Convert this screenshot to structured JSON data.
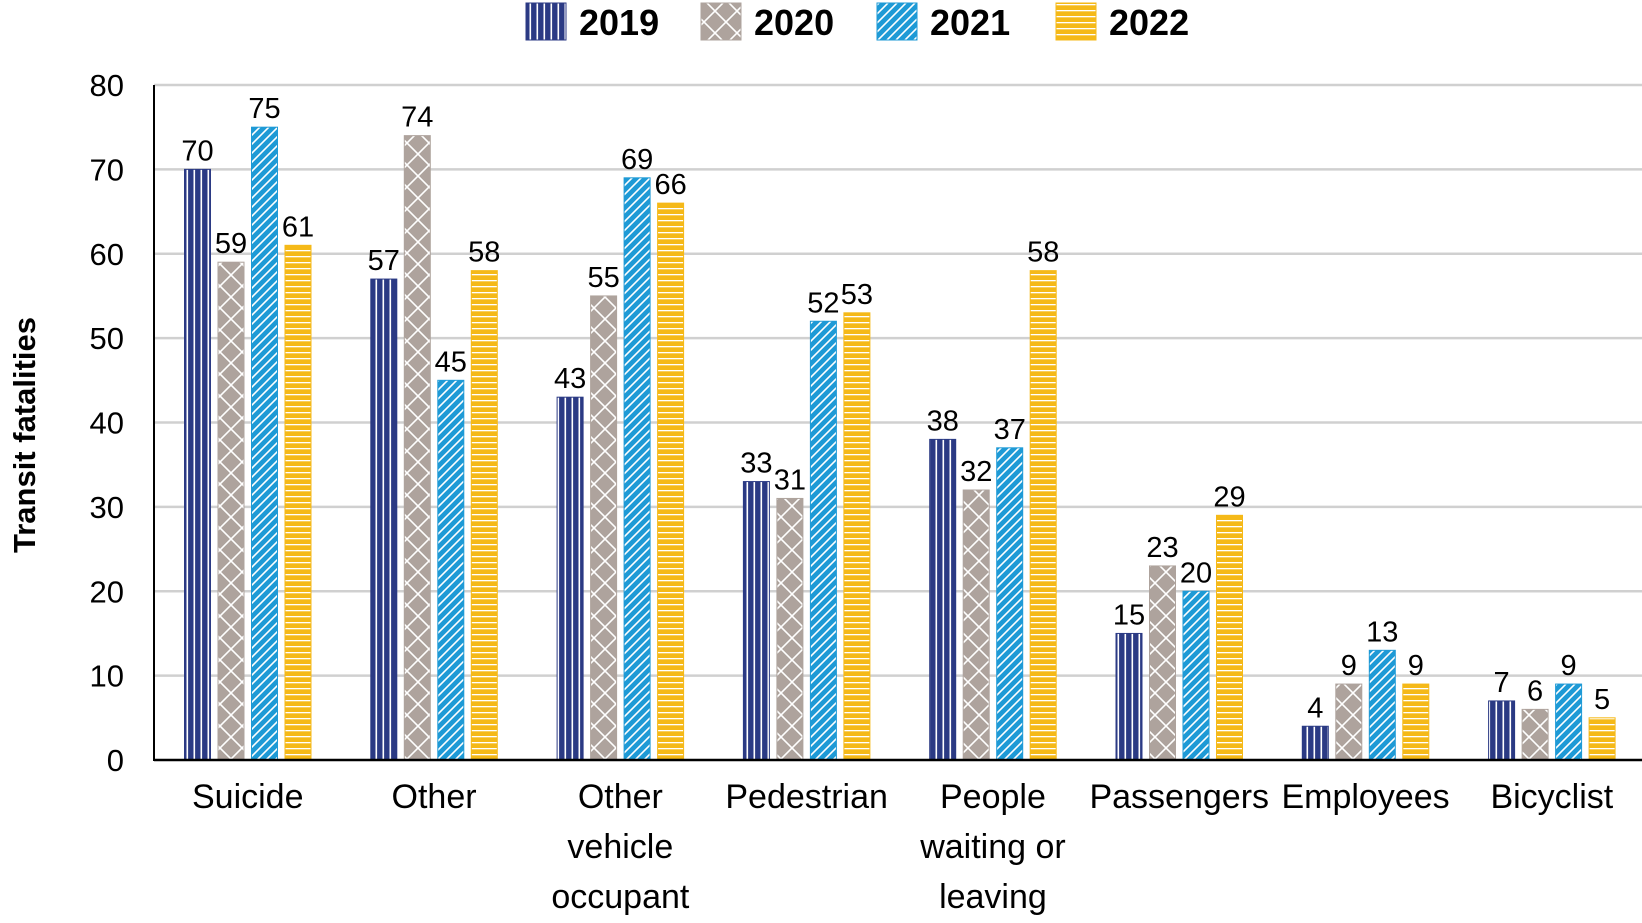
{
  "chart_data": {
    "type": "bar",
    "title": "",
    "xlabel": "",
    "ylabel": "Transit fatalities",
    "ylim": [
      0,
      80
    ],
    "yticks": [
      0,
      10,
      20,
      30,
      40,
      50,
      60,
      70,
      80
    ],
    "grid": true,
    "legend_position": "top-center",
    "categories": [
      [
        "Suicide"
      ],
      [
        "Other"
      ],
      [
        "Other",
        "vehicle",
        "occupant"
      ],
      [
        "Pedestrian"
      ],
      [
        "People",
        "waiting or",
        "leaving"
      ],
      [
        "Passengers"
      ],
      [
        "Employees"
      ],
      [
        "Bicyclist"
      ]
    ],
    "series": [
      {
        "name": "2019",
        "color": "#2b3a84",
        "pattern": "vertical-stripes",
        "values": [
          70,
          57,
          43,
          33,
          38,
          15,
          4,
          7
        ]
      },
      {
        "name": "2020",
        "color": "#aea39d",
        "pattern": "crosshatch",
        "values": [
          59,
          74,
          55,
          31,
          32,
          23,
          9,
          6
        ]
      },
      {
        "name": "2021",
        "color": "#1e9ad6",
        "pattern": "diagonal-stripes",
        "values": [
          75,
          45,
          69,
          52,
          37,
          20,
          13,
          9
        ]
      },
      {
        "name": "2022",
        "color": "#f5b918",
        "pattern": "horizontal-stripes",
        "values": [
          61,
          58,
          66,
          53,
          58,
          29,
          9,
          5
        ]
      }
    ]
  }
}
